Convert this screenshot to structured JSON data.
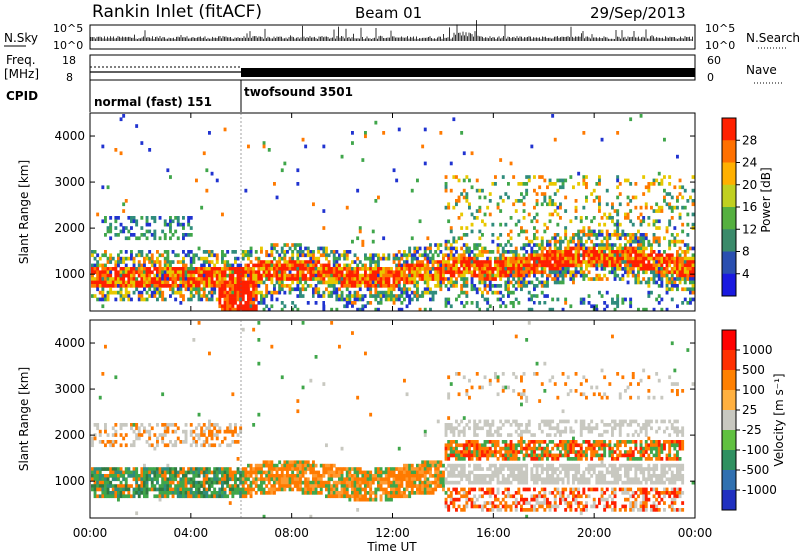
{
  "header": {
    "station": "Rankin Inlet (fitACF)",
    "beam": "Beam 01",
    "date": "29/Sep/2013"
  },
  "nsky_panel": {
    "left_label": "N.Sky",
    "right_label": "N.Search",
    "left_ticks": [
      "10^5",
      "10^0"
    ],
    "right_ticks": [
      "10^5",
      "10^0"
    ]
  },
  "freq_panel": {
    "left_label": "Freq.",
    "left_unit": "[MHz]",
    "left_ticks": [
      "18",
      "8"
    ],
    "right_label": "Nave",
    "right_ticks": [
      "60",
      "0"
    ]
  },
  "cpid": {
    "label": "CPID",
    "modes": [
      {
        "name": "normal (fast) 151",
        "start_h": 0,
        "end_h": 6
      },
      {
        "name": "twofsound 3501",
        "start_h": 6,
        "end_h": 24
      }
    ]
  },
  "colors": {
    "red": "#ff1f00",
    "orange": "#ff7a00",
    "yellow": "#e8c800",
    "green": "#3fa64a",
    "teal": "#2f8c7c",
    "blue": "#2033d0",
    "gray": "#c8c8c0"
  },
  "chart_data": [
    {
      "type": "heatmap",
      "name": "power",
      "ylabel": "Slant Range [km]",
      "yticks": [
        "4000",
        "3000",
        "2000",
        "1000"
      ],
      "ylim": [
        200,
        4500
      ],
      "xlim": [
        0,
        24
      ],
      "colorbar": {
        "label": "Power [dB]",
        "ticks": [
          "28",
          "24",
          "20",
          "16",
          "12",
          "8",
          "4"
        ],
        "range": [
          0,
          32
        ],
        "colors": [
          "#1a1ae0",
          "#2a4fb0",
          "#3a8a6a",
          "#55b040",
          "#c0d020",
          "#ffb000",
          "#ff7000",
          "#ff2000"
        ]
      }
    },
    {
      "type": "heatmap",
      "name": "velocity",
      "ylabel": "Slant Range [km]",
      "yticks": [
        "4000",
        "3000",
        "2000",
        "1000"
      ],
      "ylim": [
        200,
        4500
      ],
      "xlim": [
        0,
        24
      ],
      "xticks": [
        "00:00",
        "04:00",
        "08:00",
        "12:00",
        "16:00",
        "20:00",
        "00:00"
      ],
      "xlabel": "Time UT",
      "colorbar": {
        "label": "Velocity [m s⁻¹]",
        "ticks": [
          "1000",
          "500",
          "100",
          "25",
          "-25",
          "-100",
          "-500",
          "-1000"
        ],
        "colors": [
          "#2030c0",
          "#3070b0",
          "#2f9060",
          "#60c040",
          "#c8c8c0",
          "#ffb040",
          "#ff8000",
          "#ff3000",
          "#ff0000"
        ]
      }
    }
  ]
}
